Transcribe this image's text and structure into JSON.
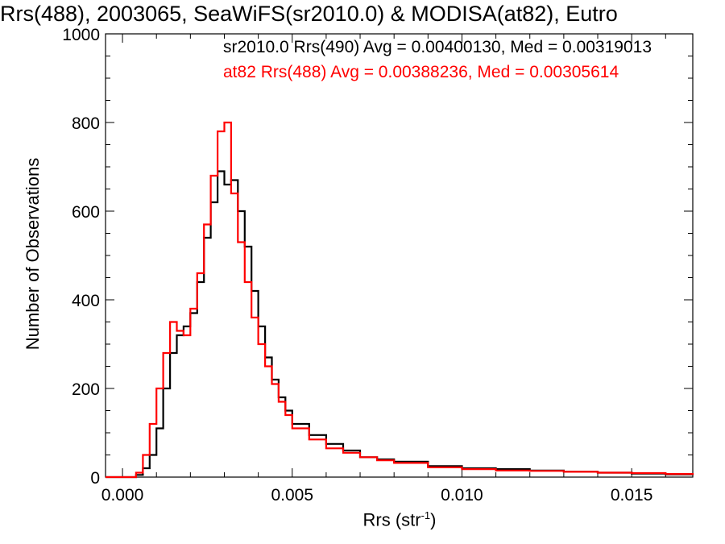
{
  "chart_data": {
    "type": "line",
    "title": "Rrs(488), 2003065, SeaWiFS(sr2010.0) & MODISA(at82), Eutro",
    "xlabel": "Rrs (str",
    "xlabel_sup": "-1",
    "xlabel_suffix": ")",
    "ylabel": "Number of Observations",
    "xlim": [
      -0.0005,
      0.0168
    ],
    "ylim": [
      0,
      1000
    ],
    "xticks": [
      0.0,
      0.005,
      0.01,
      0.015
    ],
    "xtick_labels": [
      "0.000",
      "0.005",
      "0.010",
      "0.015"
    ],
    "yticks": [
      0,
      200,
      400,
      600,
      800,
      1000
    ],
    "ytick_labels": [
      "0",
      "200",
      "400",
      "600",
      "800",
      "1000"
    ],
    "grid": false,
    "series": [
      {
        "name": "sr2010.0 Rrs(490) Avg = 0.00400130, Med = 0.00319013",
        "color": "#000000",
        "x": [
          -0.0005,
          0.0,
          0.0004,
          0.0006,
          0.0008,
          0.001,
          0.0012,
          0.0014,
          0.0016,
          0.0018,
          0.002,
          0.0022,
          0.0024,
          0.0026,
          0.0028,
          0.003,
          0.0032,
          0.0034,
          0.0036,
          0.0038,
          0.004,
          0.0042,
          0.0044,
          0.0046,
          0.0048,
          0.005,
          0.0055,
          0.006,
          0.0065,
          0.007,
          0.0075,
          0.008,
          0.009,
          0.01,
          0.011,
          0.012,
          0.013,
          0.014,
          0.015,
          0.016,
          0.0168
        ],
        "values": [
          0,
          0,
          5,
          20,
          50,
          110,
          200,
          280,
          320,
          340,
          370,
          440,
          540,
          620,
          690,
          660,
          670,
          600,
          520,
          420,
          340,
          270,
          220,
          180,
          150,
          120,
          95,
          75,
          60,
          45,
          40,
          35,
          25,
          20,
          18,
          15,
          12,
          10,
          8,
          6,
          5
        ]
      },
      {
        "name": "at82 Rrs(488) Avg = 0.00388236, Med = 0.00305614",
        "color": "#ff0000",
        "x": [
          -0.0005,
          0.0,
          0.0004,
          0.0006,
          0.0008,
          0.001,
          0.0012,
          0.0014,
          0.0016,
          0.0018,
          0.002,
          0.0022,
          0.0024,
          0.0026,
          0.0028,
          0.003,
          0.0032,
          0.0034,
          0.0036,
          0.0038,
          0.004,
          0.0042,
          0.0044,
          0.0046,
          0.0048,
          0.005,
          0.0055,
          0.006,
          0.0065,
          0.007,
          0.0075,
          0.008,
          0.009,
          0.01,
          0.011,
          0.012,
          0.013,
          0.014,
          0.015,
          0.016,
          0.0168
        ],
        "values": [
          0,
          0,
          10,
          50,
          120,
          200,
          280,
          350,
          330,
          320,
          380,
          460,
          570,
          680,
          780,
          800,
          640,
          530,
          440,
          360,
          300,
          250,
          210,
          170,
          140,
          110,
          85,
          65,
          55,
          45,
          38,
          32,
          22,
          18,
          15,
          14,
          12,
          10,
          9,
          7,
          5
        ]
      }
    ]
  }
}
